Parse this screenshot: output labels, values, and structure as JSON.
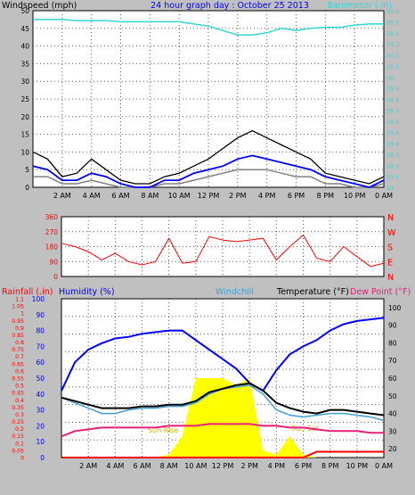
{
  "header": {
    "windspeed_label": "Windspeed (mph)",
    "title": "24 hour graph day : October 25 2013",
    "barometer_label": "Barometer (.in)"
  },
  "colors": {
    "background": "#c0c0c0",
    "plot": "#ffffff",
    "wind_gust": "#000000",
    "wind_avg": "#0000ff",
    "wind_min": "#808080",
    "barometer": "#33d6d6",
    "direction": "#ff0000",
    "temperature": "#000000",
    "humidity": "#0000ff",
    "windchill": "#3f9fd6",
    "dewpoint": "#e8207a",
    "rainfall": "#ff0000",
    "solar": "#ffff00",
    "sun_text": "#d8b000"
  },
  "x_ticks": [
    "2 AM",
    "4 AM",
    "6 AM",
    "8 AM",
    "10 AM",
    "12 PM",
    "2 PM",
    "4 PM",
    "6 PM",
    "8 PM",
    "10 PM",
    "0 AM"
  ],
  "chart_data": [
    {
      "type": "line",
      "id": "wind",
      "ylabel": "Windspeed (mph)",
      "ylim": [
        0,
        50
      ],
      "y_ticks": [
        "0",
        "5",
        "10",
        "15",
        "20",
        "25",
        "30",
        "35",
        "40",
        "45",
        "50"
      ],
      "y2label": "Barometer (.in)",
      "y2lim": [
        29.0,
        30.6
      ],
      "y2_ticks": [
        "29",
        "29.1",
        "29.2",
        "29.3",
        "29.4",
        "29.5",
        "29.6",
        "29.7",
        "29.8",
        "29.9",
        "30",
        "30.1",
        "30.2",
        "30.3",
        "30.4",
        "30.5",
        "30.6"
      ],
      "x": [
        0,
        1,
        2,
        3,
        4,
        5,
        6,
        7,
        8,
        9,
        10,
        11,
        12,
        13,
        14,
        15,
        16,
        17,
        18,
        19,
        20,
        21,
        22,
        23,
        24
      ],
      "series": [
        {
          "name": "gust",
          "values": [
            10,
            8,
            3,
            4,
            8,
            5,
            2,
            1,
            1,
            3,
            4,
            6,
            8,
            11,
            14,
            16,
            14,
            12,
            10,
            8,
            4,
            3,
            2,
            1,
            3
          ]
        },
        {
          "name": "average",
          "values": [
            6,
            5,
            2,
            2,
            4,
            3,
            1,
            0,
            0,
            2,
            2,
            4,
            5,
            6,
            8,
            9,
            8,
            7,
            6,
            5,
            3,
            2,
            1,
            0,
            2
          ]
        },
        {
          "name": "minimum",
          "values": [
            3,
            3,
            1,
            1,
            2,
            1,
            0,
            0,
            0,
            1,
            1,
            2,
            3,
            4,
            5,
            5,
            5,
            4,
            3,
            3,
            1,
            1,
            0,
            0,
            1
          ]
        },
        {
          "name": "barometer",
          "axis": "y2",
          "values": [
            30.52,
            30.52,
            30.52,
            30.51,
            30.51,
            30.51,
            30.5,
            30.5,
            30.5,
            30.5,
            30.5,
            30.48,
            30.46,
            30.42,
            30.38,
            30.38,
            30.4,
            30.44,
            30.42,
            30.44,
            30.45,
            30.45,
            30.47,
            30.48,
            30.48
          ]
        }
      ]
    },
    {
      "type": "scatter",
      "id": "direction",
      "ylim": [
        0,
        360
      ],
      "y_ticks": [
        "0",
        "90",
        "180",
        "270",
        "360"
      ],
      "y2_ticks": [
        "N",
        "E",
        "S",
        "W",
        "N"
      ],
      "x": [
        0,
        1,
        2,
        3,
        4,
        5,
        6,
        7,
        8,
        9,
        10,
        11,
        12,
        13,
        14,
        15,
        16,
        17,
        18,
        19,
        20,
        21,
        22,
        23,
        24
      ],
      "values": [
        200,
        180,
        150,
        100,
        140,
        90,
        70,
        90,
        230,
        80,
        90,
        240,
        220,
        210,
        220,
        230,
        100,
        180,
        250,
        110,
        90,
        180,
        120,
        60,
        80
      ]
    },
    {
      "type": "line",
      "id": "weather",
      "labels": [
        "Rainfall (.in)",
        "Humidity (%)",
        "Windchill",
        "Temperature (°F)",
        "Dew Point (°F)"
      ],
      "rain_ylim": [
        0,
        1.1
      ],
      "rain_ticks": [
        "0",
        "0.05",
        "0.1",
        "0.15",
        "0.2",
        "0.25",
        "0.3",
        "0.35",
        "0.4",
        "0.45",
        "0.5",
        "0.55",
        "0.6",
        "0.65",
        "0.7",
        "0.75",
        "0.8",
        "0.85",
        "0.9",
        "0.95",
        "1",
        "1.05",
        "1.1"
      ],
      "humidity_ylim": [
        0,
        100
      ],
      "humidity_ticks": [
        "0",
        "10",
        "20",
        "30",
        "40",
        "50",
        "60",
        "70",
        "80",
        "90",
        "100"
      ],
      "temp_ylim": [
        15,
        105
      ],
      "temp_ticks": [
        "20",
        "30",
        "40",
        "50",
        "60",
        "70",
        "80",
        "90",
        "100"
      ],
      "x": [
        0,
        1,
        2,
        3,
        4,
        5,
        6,
        7,
        8,
        9,
        10,
        11,
        12,
        13,
        14,
        15,
        16,
        17,
        18,
        19,
        20,
        21,
        22,
        23,
        24
      ],
      "series": [
        {
          "name": "Humidity (%)",
          "axis": "humidity",
          "values": [
            42,
            60,
            68,
            72,
            75,
            76,
            78,
            79,
            80,
            80,
            74,
            68,
            62,
            56,
            47,
            42,
            55,
            65,
            70,
            74,
            80,
            84,
            86,
            87,
            88
          ]
        },
        {
          "name": "Windchill",
          "axis": "temp",
          "values": [
            49,
            46,
            43,
            40,
            40,
            42,
            43,
            43,
            44,
            44,
            46,
            51,
            54,
            55,
            56,
            51,
            42,
            39,
            38,
            39,
            40,
            40,
            39,
            38,
            36
          ]
        },
        {
          "name": "Temperature (°F)",
          "axis": "temp",
          "values": [
            49,
            47,
            45,
            43,
            43,
            43,
            44,
            44,
            45,
            45,
            47,
            52,
            54,
            56,
            57,
            53,
            46,
            43,
            41,
            40,
            42,
            42,
            41,
            40,
            39
          ]
        },
        {
          "name": "Dew Point (°F)",
          "axis": "temp",
          "values": [
            27,
            30,
            31,
            32,
            32,
            32,
            32,
            32,
            33,
            33,
            33,
            34,
            34,
            34,
            34,
            33,
            33,
            32,
            32,
            31,
            30,
            30,
            30,
            29,
            29
          ]
        },
        {
          "name": "Rainfall (.in)",
          "axis": "rain",
          "values": [
            0,
            0,
            0,
            0,
            0,
            0,
            0,
            0,
            0,
            0,
            0,
            0,
            0,
            0,
            0,
            0,
            0,
            0,
            0,
            0.04,
            0.04,
            0.04,
            0.04,
            0.04,
            0.04
          ]
        },
        {
          "name": "solar",
          "axis": "rain",
          "values": [
            0,
            0,
            0,
            0,
            0,
            0,
            0,
            0,
            0.02,
            0.15,
            0.55,
            0.55,
            0.55,
            0.5,
            0.55,
            0.05,
            0.02,
            0.15,
            0.02,
            0,
            0,
            0,
            0,
            0,
            0
          ]
        }
      ],
      "annotations": [
        "Sun Rise",
        "Sun Set"
      ]
    }
  ]
}
